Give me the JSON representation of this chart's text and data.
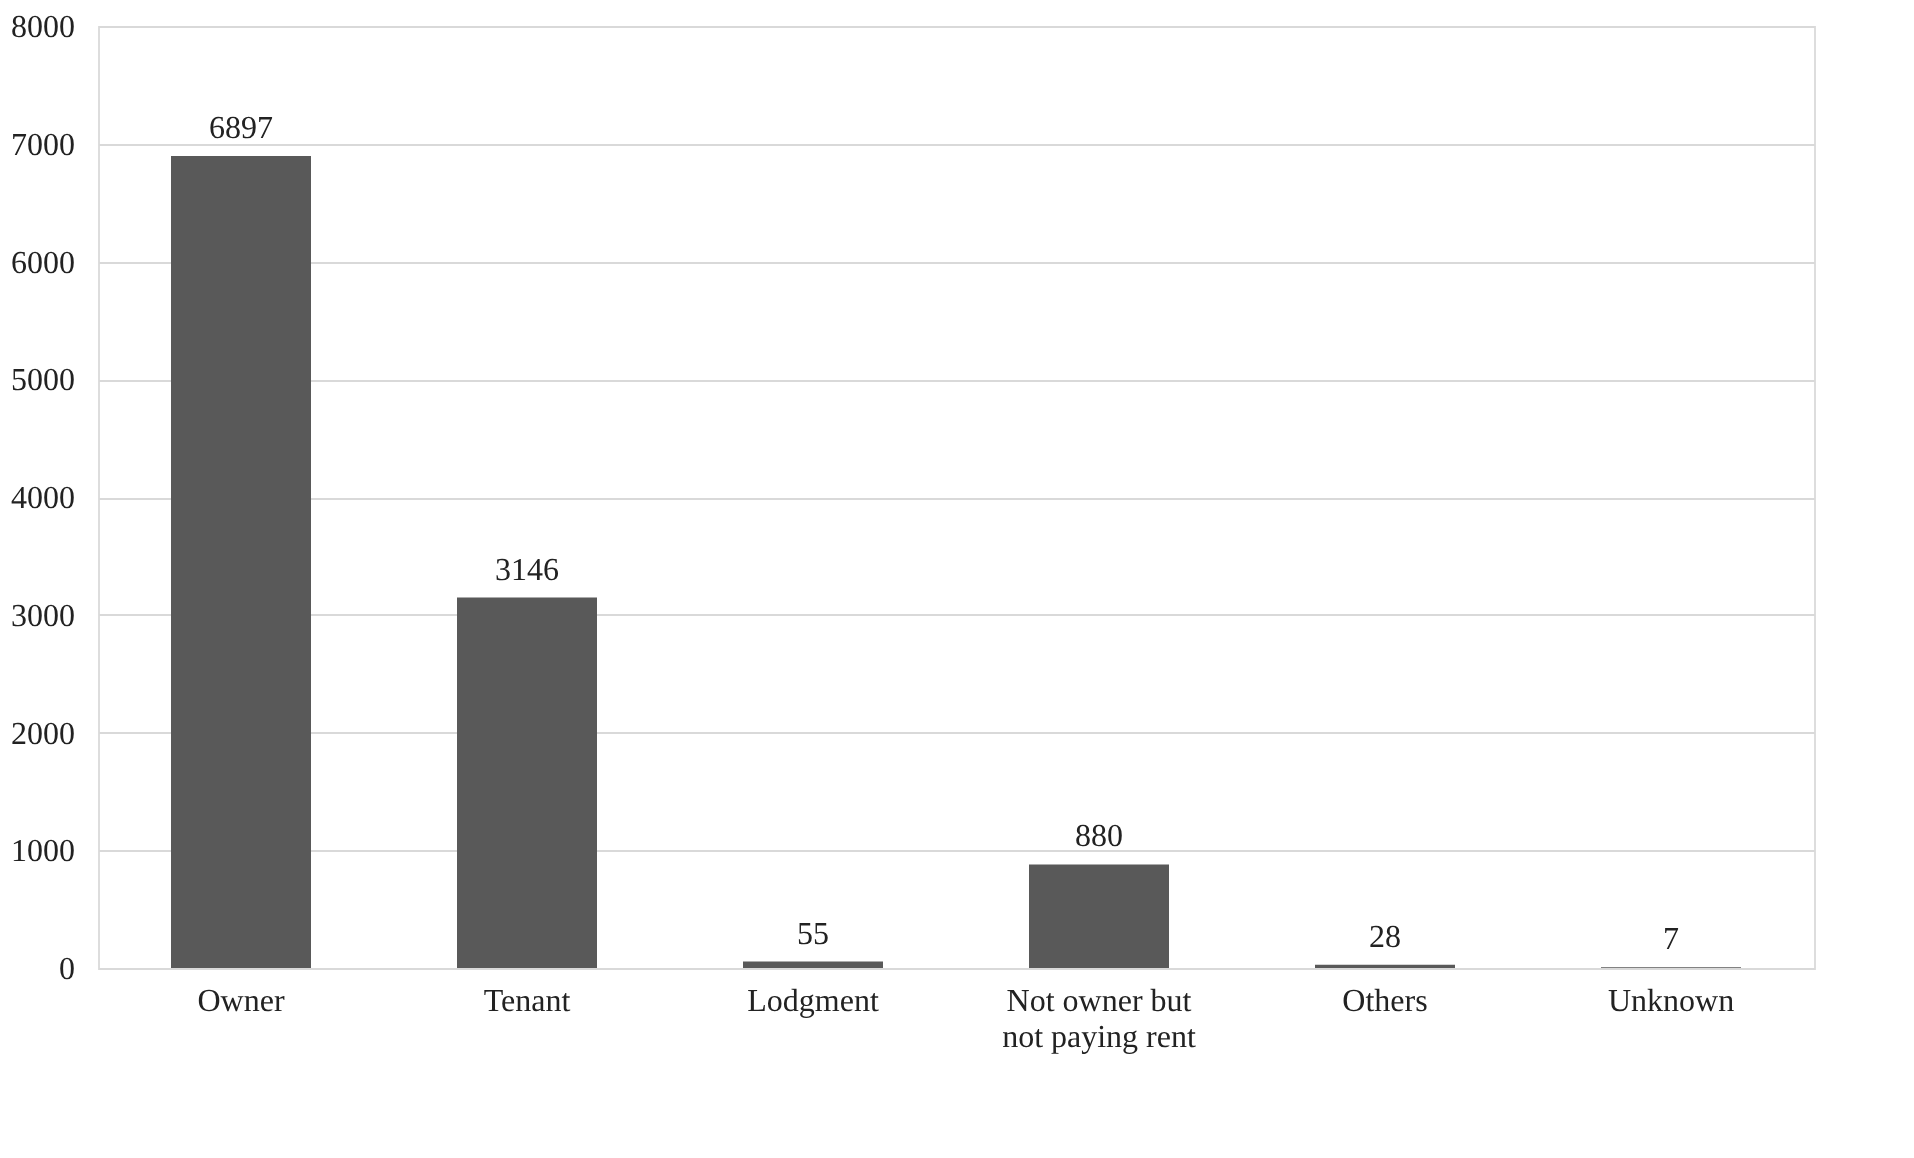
{
  "chart_data": {
    "type": "bar",
    "categories": [
      "Owner",
      "Tenant",
      "Lodgment",
      "Not owner but not paying rent",
      "Others",
      "Unknown"
    ],
    "values": [
      6897,
      3146,
      55,
      880,
      28,
      7
    ],
    "color": "#595959",
    "ylim": [
      0,
      8000
    ],
    "yticks": [
      0,
      1000,
      2000,
      3000,
      4000,
      5000,
      6000,
      7000,
      8000
    ],
    "grid": "y",
    "data_labels": true
  }
}
